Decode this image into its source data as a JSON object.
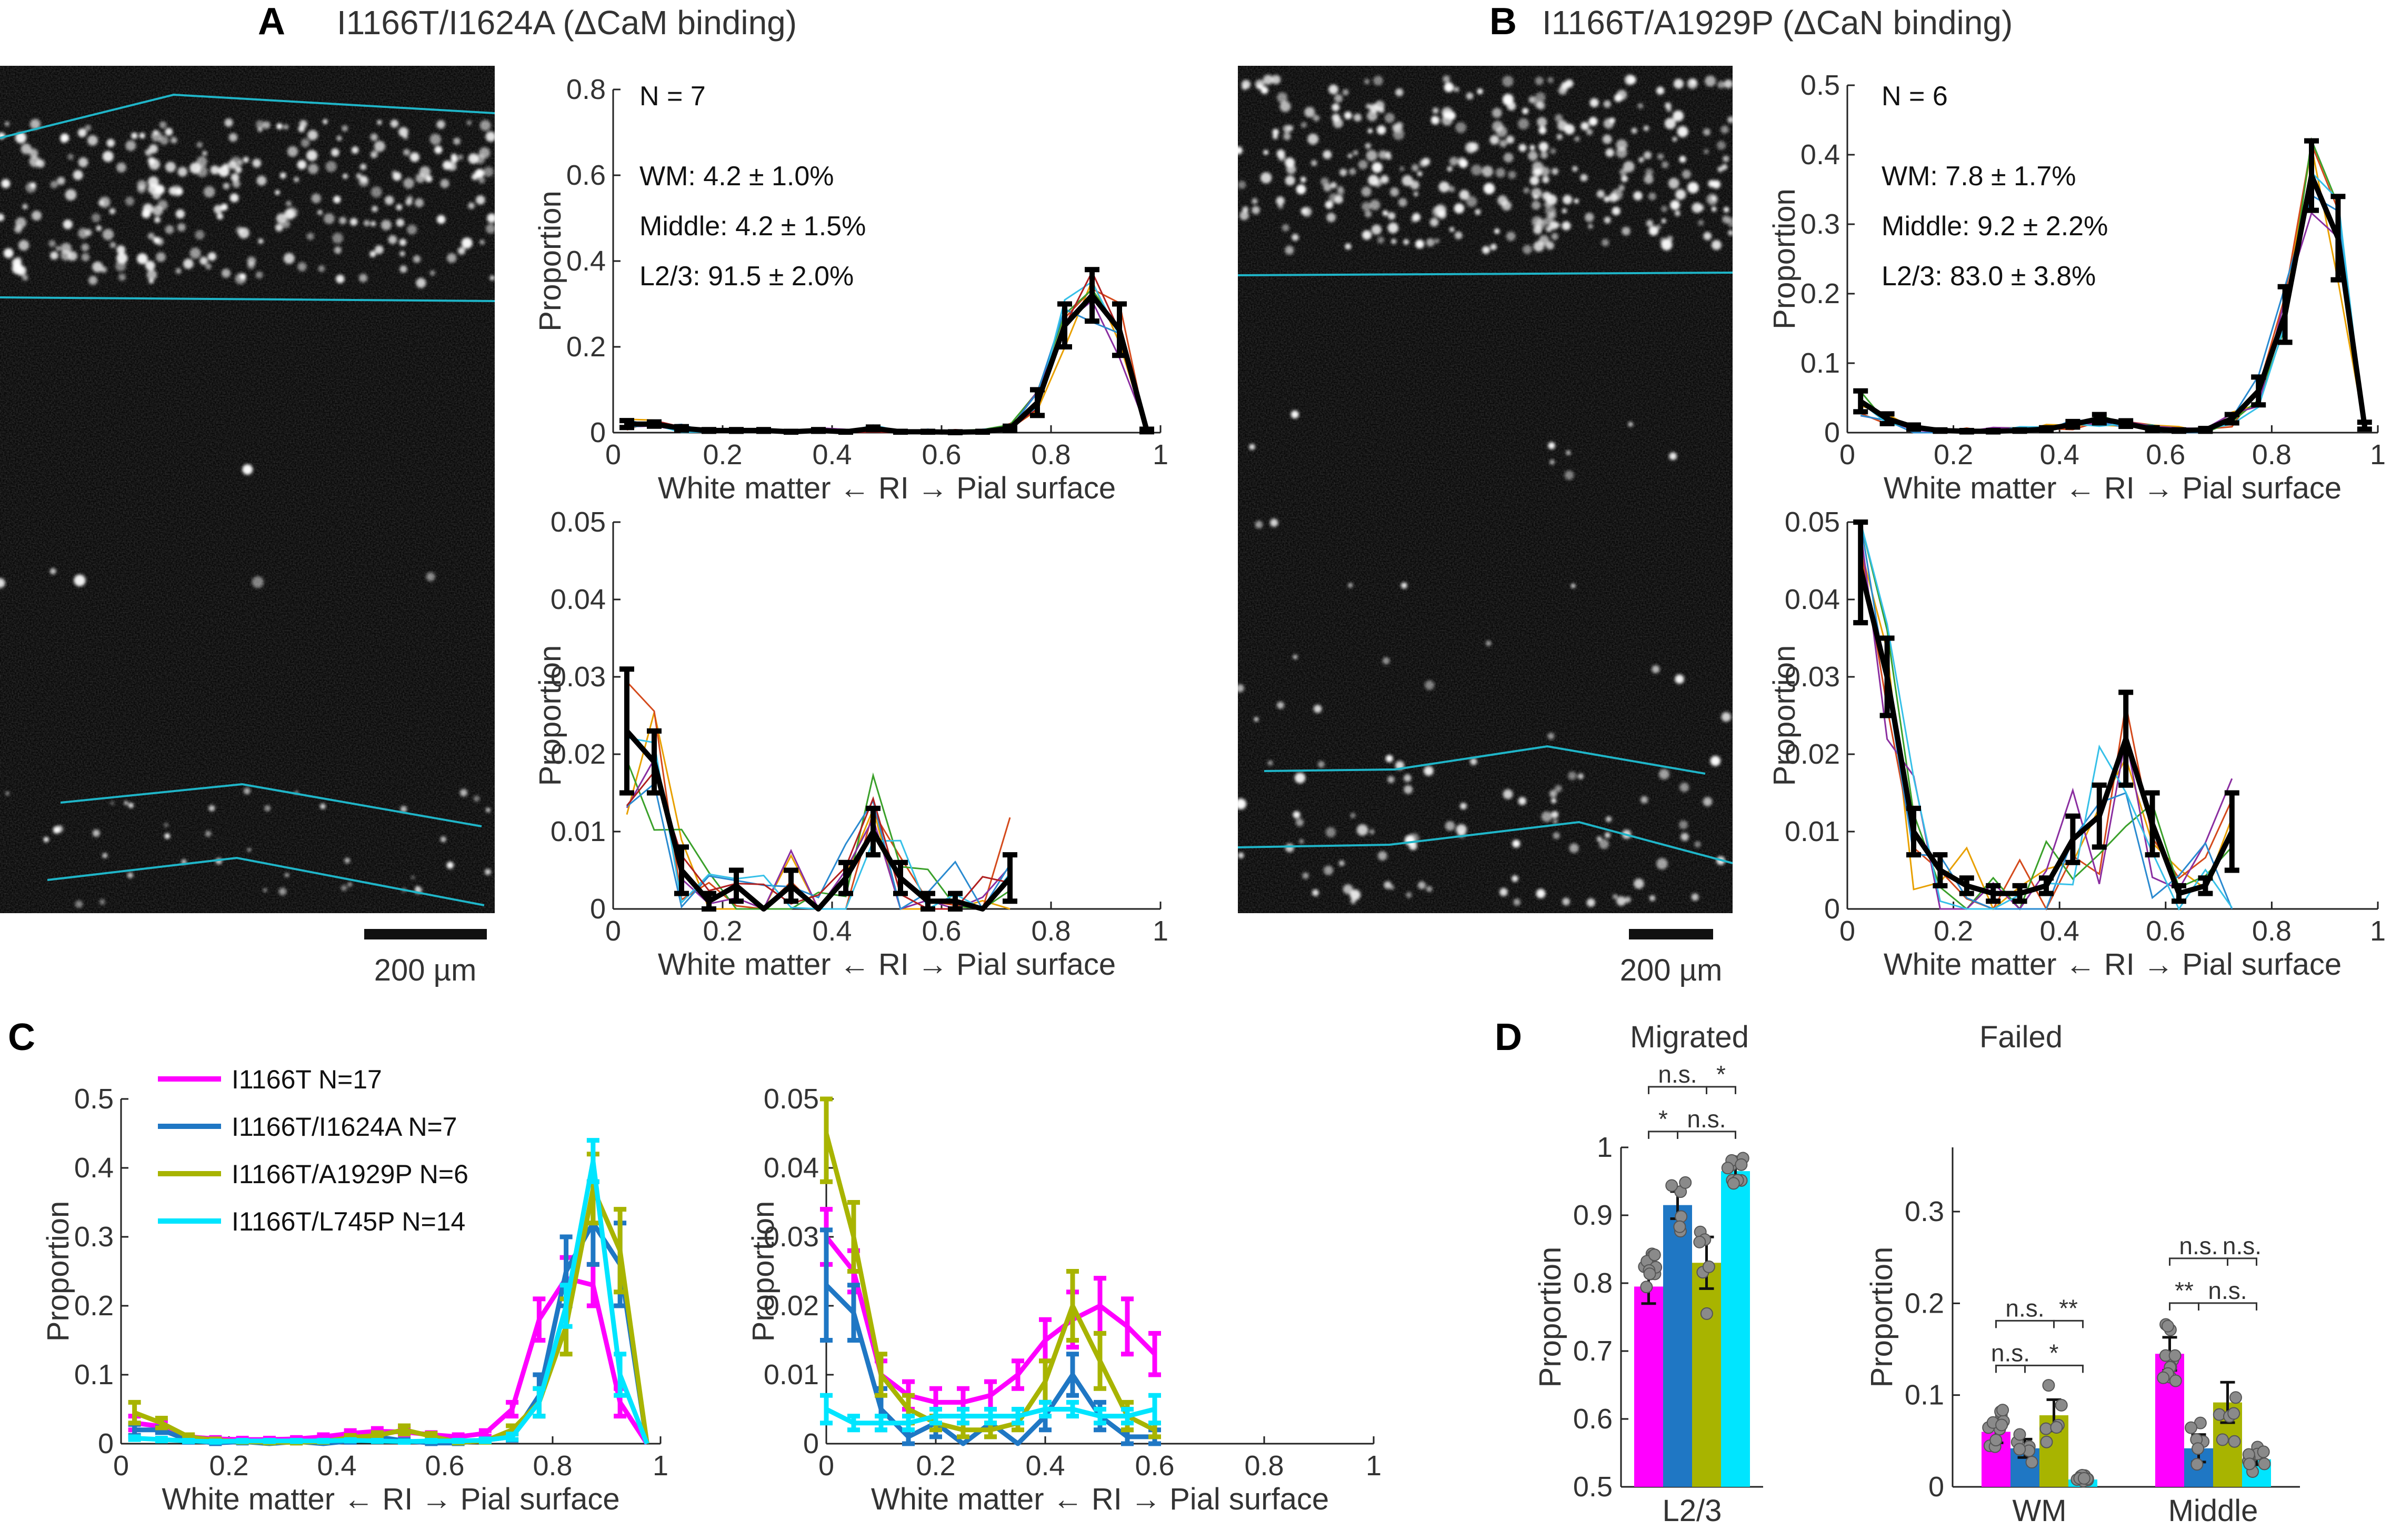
{
  "panel_labels": {
    "a": "A",
    "b": "B",
    "c": "C",
    "d": "D"
  },
  "titles": {
    "a": "I1166T/I1624A (ΔCaM binding)",
    "b": "I1166T/A1929P (ΔCaN binding)"
  },
  "scalebar_label": "200 µm",
  "xlabel": "White matter ← RI → Pial surface",
  "ylabel": "Proportion",
  "annotations": {
    "a": {
      "n": "N = 7",
      "wm": "WM: 4.2 ± 1.0%",
      "middle": "Middle: 4.2 ± 1.5%",
      "l23": "L2/3: 91.5 ± 2.0%"
    },
    "b": {
      "n": "N = 6",
      "wm": "WM: 7.8 ± 1.7%",
      "middle": "Middle: 9.2 ± 2.2%",
      "l23": "L2/3: 83.0 ± 3.8%"
    }
  },
  "colors": {
    "magenta": "#ff00ff",
    "blue": "#1f77c4",
    "olive": "#a8b400",
    "cyan": "#00e5ff",
    "black": "#000000",
    "teal": "#1fb5c8"
  },
  "chart_data": [
    {
      "id": "A-top",
      "type": "line",
      "xlim": [
        0,
        1
      ],
      "ylim": [
        0,
        0.8
      ],
      "xticks": [
        "0",
        "0.2",
        "0.4",
        "0.6",
        "0.8",
        "1"
      ],
      "yticks": [
        "0",
        "0.2",
        "0.4",
        "0.6",
        "0.8"
      ],
      "x": [
        0.025,
        0.075,
        0.125,
        0.175,
        0.225,
        0.275,
        0.325,
        0.375,
        0.425,
        0.475,
        0.525,
        0.575,
        0.625,
        0.675,
        0.725,
        0.775,
        0.825,
        0.875,
        0.925,
        0.975
      ],
      "mean": [
        0.02,
        0.02,
        0.01,
        0.005,
        0.005,
        0.005,
        0.002,
        0.005,
        0.002,
        0.01,
        0.002,
        0.002,
        0.001,
        0.002,
        0.01,
        0.07,
        0.25,
        0.32,
        0.24,
        0.005
      ],
      "err": [
        0.008,
        0.005,
        0.004,
        0.002,
        0.002,
        0.002,
        0.001,
        0.002,
        0.001,
        0.003,
        0.001,
        0.001,
        0.001,
        0.001,
        0.005,
        0.03,
        0.05,
        0.06,
        0.06,
        0.003
      ]
    },
    {
      "id": "A-bottom",
      "type": "line",
      "xlim": [
        0,
        1
      ],
      "ylim": [
        0,
        0.05
      ],
      "xticks": [
        "0",
        "0.2",
        "0.4",
        "0.6",
        "0.8",
        "1"
      ],
      "yticks": [
        "0",
        "0.01",
        "0.02",
        "0.03",
        "0.04",
        "0.05"
      ],
      "x": [
        0.025,
        0.075,
        0.125,
        0.175,
        0.225,
        0.275,
        0.325,
        0.375,
        0.425,
        0.475,
        0.525,
        0.575,
        0.625,
        0.675,
        0.725
      ],
      "mean": [
        0.023,
        0.019,
        0.005,
        0.001,
        0.003,
        0,
        0.003,
        0,
        0.004,
        0.01,
        0.004,
        0.001,
        0.001,
        0,
        0.004
      ],
      "err": [
        0.008,
        0.004,
        0.003,
        0.001,
        0.002,
        0,
        0.002,
        0,
        0.002,
        0.003,
        0.002,
        0.001,
        0.001,
        0,
        0.003
      ]
    },
    {
      "id": "B-top",
      "type": "line",
      "xlim": [
        0,
        1
      ],
      "ylim": [
        0,
        0.5
      ],
      "xticks": [
        "0",
        "0.2",
        "0.4",
        "0.6",
        "0.8",
        "1"
      ],
      "yticks": [
        "0",
        "0.1",
        "0.2",
        "0.3",
        "0.4",
        "0.5"
      ],
      "x": [
        0.025,
        0.075,
        0.125,
        0.175,
        0.225,
        0.275,
        0.325,
        0.375,
        0.425,
        0.475,
        0.525,
        0.575,
        0.625,
        0.675,
        0.725,
        0.775,
        0.825,
        0.875,
        0.925,
        0.975
      ],
      "mean": [
        0.045,
        0.02,
        0.008,
        0.003,
        0.002,
        0.002,
        0.003,
        0.005,
        0.012,
        0.02,
        0.013,
        0.005,
        0.003,
        0.004,
        0.02,
        0.06,
        0.17,
        0.37,
        0.28,
        0.01
      ],
      "err": [
        0.015,
        0.007,
        0.003,
        0.001,
        0.001,
        0.001,
        0.001,
        0.002,
        0.004,
        0.006,
        0.004,
        0.002,
        0.001,
        0.002,
        0.006,
        0.02,
        0.04,
        0.05,
        0.06,
        0.005
      ]
    },
    {
      "id": "B-bottom",
      "type": "line",
      "xlim": [
        0,
        1
      ],
      "ylim": [
        0,
        0.05
      ],
      "xticks": [
        "0",
        "0.2",
        "0.4",
        "0.6",
        "0.8",
        "1"
      ],
      "yticks": [
        "0",
        "0.01",
        "0.02",
        "0.03",
        "0.04",
        "0.05"
      ],
      "x": [
        0.025,
        0.075,
        0.125,
        0.175,
        0.225,
        0.275,
        0.325,
        0.375,
        0.425,
        0.475,
        0.525,
        0.575,
        0.625,
        0.675,
        0.725
      ],
      "mean": [
        0.044,
        0.03,
        0.01,
        0.005,
        0.003,
        0.002,
        0.002,
        0.003,
        0.009,
        0.012,
        0.022,
        0.011,
        0.002,
        0.003,
        0.01
      ],
      "err": [
        0.007,
        0.005,
        0.003,
        0.002,
        0.001,
        0.001,
        0.001,
        0.001,
        0.003,
        0.004,
        0.006,
        0.004,
        0.001,
        0.001,
        0.005
      ]
    },
    {
      "id": "C-left",
      "type": "line",
      "xlim": [
        0,
        1
      ],
      "ylim": [
        0,
        0.5
      ],
      "xticks": [
        "0",
        "0.2",
        "0.4",
        "0.6",
        "0.8",
        "1"
      ],
      "yticks": [
        "0",
        "0.1",
        "0.2",
        "0.3",
        "0.4",
        "0.5"
      ],
      "x": [
        0.025,
        0.075,
        0.125,
        0.175,
        0.225,
        0.275,
        0.325,
        0.375,
        0.425,
        0.475,
        0.525,
        0.575,
        0.625,
        0.675,
        0.725,
        0.775,
        0.825,
        0.875,
        0.925,
        0.975
      ],
      "series": [
        {
          "name": "I1166T  N=17",
          "color": "#ff00ff",
          "values": [
            0.03,
            0.025,
            0.01,
            0.007,
            0.006,
            0.006,
            0.007,
            0.01,
            0.015,
            0.018,
            0.017,
            0.013,
            0.01,
            0.015,
            0.05,
            0.18,
            0.24,
            0.23,
            0.06,
            0
          ],
          "err": [
            0.01,
            0.008,
            0.003,
            0.002,
            0.002,
            0.002,
            0.002,
            0.003,
            0.004,
            0.004,
            0.004,
            0.003,
            0.003,
            0.004,
            0.01,
            0.03,
            0.03,
            0.03,
            0.02,
            0
          ]
        },
        {
          "name": "I1166T/I1624A  N=7",
          "color": "#1f77c4",
          "values": [
            0.02,
            0.02,
            0.005,
            0.001,
            0.003,
            0,
            0.003,
            0,
            0.004,
            0.01,
            0.004,
            0.001,
            0.001,
            0.005,
            0.01,
            0.07,
            0.25,
            0.32,
            0.26,
            0
          ],
          "err": [
            0.008,
            0.004,
            0.003,
            0.001,
            0.002,
            0,
            0.002,
            0,
            0.002,
            0.003,
            0.002,
            0.001,
            0.001,
            0.002,
            0.005,
            0.03,
            0.05,
            0.06,
            0.06,
            0
          ]
        },
        {
          "name": "I1166T/A1929P  N=6",
          "color": "#a8b400",
          "values": [
            0.045,
            0.03,
            0.01,
            0.005,
            0.003,
            0.002,
            0.002,
            0.003,
            0.009,
            0.012,
            0.02,
            0.011,
            0.002,
            0.004,
            0.02,
            0.06,
            0.17,
            0.37,
            0.28,
            0
          ],
          "err": [
            0.015,
            0.007,
            0.003,
            0.002,
            0.001,
            0.001,
            0.001,
            0.001,
            0.003,
            0.004,
            0.006,
            0.004,
            0.001,
            0.002,
            0.006,
            0.02,
            0.04,
            0.05,
            0.06,
            0
          ]
        },
        {
          "name": "I1166T/L745P  N=14",
          "color": "#00e5ff",
          "values": [
            0.008,
            0.006,
            0.004,
            0.003,
            0.004,
            0.004,
            0.004,
            0.004,
            0.005,
            0.004,
            0.003,
            0.004,
            0.004,
            0.005,
            0.01,
            0.06,
            0.2,
            0.41,
            0.1,
            0
          ],
          "err": [
            0.002,
            0.002,
            0.001,
            0.001,
            0.001,
            0.001,
            0.001,
            0.001,
            0.001,
            0.001,
            0.001,
            0.001,
            0.001,
            0.002,
            0.004,
            0.02,
            0.03,
            0.03,
            0.03,
            0
          ]
        }
      ]
    },
    {
      "id": "C-right",
      "type": "line",
      "xlim": [
        0,
        1
      ],
      "ylim": [
        0,
        0.05
      ],
      "xticks": [
        "0",
        "0.2",
        "0.4",
        "0.6",
        "0.8",
        "1"
      ],
      "yticks": [
        "0",
        "0.01",
        "0.02",
        "0.03",
        "0.04",
        "0.05"
      ],
      "x": [
        0.0,
        0.05,
        0.1,
        0.15,
        0.2,
        0.25,
        0.3,
        0.35,
        0.4,
        0.45,
        0.5,
        0.55,
        0.6
      ],
      "series": [
        {
          "name": "I1166T",
          "color": "#ff00ff",
          "values": [
            0.03,
            0.025,
            0.01,
            0.007,
            0.006,
            0.006,
            0.007,
            0.01,
            0.015,
            0.018,
            0.02,
            0.017,
            0.013
          ],
          "err": [
            0.004,
            0.003,
            0.002,
            0.002,
            0.002,
            0.002,
            0.002,
            0.002,
            0.003,
            0.004,
            0.004,
            0.004,
            0.003
          ]
        },
        {
          "name": "I1166T/I1624A",
          "color": "#1f77c4",
          "values": [
            0.023,
            0.019,
            0.005,
            0.001,
            0.003,
            0,
            0.003,
            0,
            0.004,
            0.01,
            0.004,
            0.001,
            0.001
          ],
          "err": [
            0.008,
            0.004,
            0.003,
            0.001,
            0.002,
            0,
            0.002,
            0,
            0.002,
            0.003,
            0.002,
            0.001,
            0.001
          ]
        },
        {
          "name": "I1166T/A1929P",
          "color": "#a8b400",
          "values": [
            0.045,
            0.03,
            0.01,
            0.005,
            0.003,
            0.002,
            0.002,
            0.003,
            0.009,
            0.02,
            0.012,
            0.004,
            0.002
          ],
          "err": [
            0.007,
            0.005,
            0.003,
            0.002,
            0.001,
            0.001,
            0.001,
            0.001,
            0.003,
            0.005,
            0.004,
            0.002,
            0.001
          ]
        },
        {
          "name": "I1166T/L745P",
          "color": "#00e5ff",
          "values": [
            0.005,
            0.003,
            0.003,
            0.003,
            0.004,
            0.004,
            0.004,
            0.004,
            0.005,
            0.005,
            0.004,
            0.004,
            0.005
          ],
          "err": [
            0.002,
            0.001,
            0.001,
            0.001,
            0.001,
            0.001,
            0.001,
            0.001,
            0.001,
            0.001,
            0.001,
            0.001,
            0.002
          ]
        }
      ]
    },
    {
      "id": "D-migrated",
      "type": "bar",
      "title": "Migrated",
      "ylim": [
        0.5,
        1
      ],
      "yticks": [
        "0.5",
        "0.6",
        "0.7",
        "0.8",
        "0.9",
        "1"
      ],
      "categories": [
        "L2/3"
      ],
      "series": [
        {
          "name": "I1166T",
          "color": "#ff00ff",
          "values": [
            0.795
          ],
          "err": [
            0.025
          ]
        },
        {
          "name": "I1166T/I1624A",
          "color": "#1f77c4",
          "values": [
            0.915
          ],
          "err": [
            0.02
          ]
        },
        {
          "name": "I1166T/A1929P",
          "color": "#a8b400",
          "values": [
            0.83
          ],
          "err": [
            0.038
          ]
        },
        {
          "name": "I1166T/L745P",
          "color": "#00e5ff",
          "values": [
            0.965
          ],
          "err": [
            0.008
          ]
        }
      ],
      "significance": [
        {
          "label": "n.s.",
          "pair": [
            0,
            2
          ],
          "level": "upper"
        },
        {
          "label": "*",
          "pair": [
            2,
            3
          ],
          "level": "upper"
        },
        {
          "label": "*",
          "pair": [
            0,
            1
          ],
          "level": "lower"
        },
        {
          "label": "n.s.",
          "pair": [
            1,
            3
          ],
          "level": "lower"
        }
      ]
    },
    {
      "id": "D-failed",
      "type": "bar",
      "title": "Failed",
      "ylim": [
        0,
        0.37
      ],
      "yticks": [
        "0",
        "0.1",
        "0.2",
        "0.3"
      ],
      "categories": [
        "WM",
        "Middle"
      ],
      "series": [
        {
          "name": "I1166T",
          "color": "#ff00ff",
          "values": [
            0.06,
            0.145
          ],
          "err": [
            0.012,
            0.018
          ]
        },
        {
          "name": "I1166T/I1624A",
          "color": "#1f77c4",
          "values": [
            0.042,
            0.042
          ],
          "err": [
            0.01,
            0.015
          ]
        },
        {
          "name": "I1166T/A1929P",
          "color": "#a8b400",
          "values": [
            0.078,
            0.092
          ],
          "err": [
            0.017,
            0.022
          ]
        },
        {
          "name": "I1166T/L745P",
          "color": "#00e5ff",
          "values": [
            0.008,
            0.03
          ],
          "err": [
            0.002,
            0.006
          ]
        }
      ],
      "significance": [
        {
          "label": "n.s.",
          "group": 0,
          "pair": [
            0,
            1
          ],
          "level": "lower"
        },
        {
          "label": "*",
          "group": 0,
          "pair": [
            1,
            3
          ],
          "level": "lower"
        },
        {
          "label": "n.s.",
          "group": 0,
          "pair": [
            0,
            2
          ],
          "level": "upper"
        },
        {
          "label": "**",
          "group": 0,
          "pair": [
            2,
            3
          ],
          "level": "upper"
        },
        {
          "label": "**",
          "group": 1,
          "pair": [
            0,
            1
          ],
          "level": "lower"
        },
        {
          "label": "n.s.",
          "group": 1,
          "pair": [
            1,
            3
          ],
          "level": "lower"
        },
        {
          "label": "n.s.",
          "group": 1,
          "pair": [
            0,
            2
          ],
          "level": "upper"
        },
        {
          "label": "n.s.",
          "group": 1,
          "pair": [
            2,
            3
          ],
          "level": "upper"
        }
      ]
    }
  ]
}
